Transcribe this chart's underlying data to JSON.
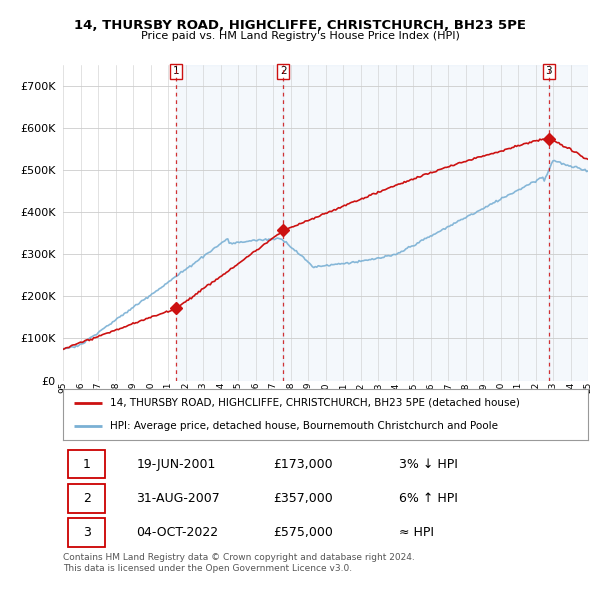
{
  "title": "14, THURSBY ROAD, HIGHCLIFFE, CHRISTCHURCH, BH23 5PE",
  "subtitle": "Price paid vs. HM Land Registry's House Price Index (HPI)",
  "ylim": [
    0,
    750000
  ],
  "yticks": [
    0,
    100000,
    200000,
    300000,
    400000,
    500000,
    600000,
    700000
  ],
  "ytick_labels": [
    "£0",
    "£100K",
    "£200K",
    "£300K",
    "£400K",
    "£500K",
    "£600K",
    "£700K"
  ],
  "sale_dates": [
    2001.47,
    2007.58,
    2022.75
  ],
  "sale_prices": [
    173000,
    357000,
    575000
  ],
  "sale_labels": [
    "1",
    "2",
    "3"
  ],
  "hpi_line_color": "#7ab0d4",
  "price_line_color": "#cc1111",
  "sale_marker_color": "#cc1111",
  "vline_color": "#cc1111",
  "grid_color": "#cccccc",
  "shade_color": "#ddeeff",
  "background_color": "#ffffff",
  "legend_line1": "14, THURSBY ROAD, HIGHCLIFFE, CHRISTCHURCH, BH23 5PE (detached house)",
  "legend_line2": "HPI: Average price, detached house, Bournemouth Christchurch and Poole",
  "table_rows": [
    [
      "1",
      "19-JUN-2001",
      "£173,000",
      "3% ↓ HPI"
    ],
    [
      "2",
      "31-AUG-2007",
      "£357,000",
      "6% ↑ HPI"
    ],
    [
      "3",
      "04-OCT-2022",
      "£575,000",
      "≈ HPI"
    ]
  ],
  "footnote": "Contains HM Land Registry data © Crown copyright and database right 2024.\nThis data is licensed under the Open Government Licence v3.0.",
  "xlim_start": 1995.25,
  "xlim_end": 2025.0,
  "xtick_start": 1995,
  "xtick_end": 2025
}
